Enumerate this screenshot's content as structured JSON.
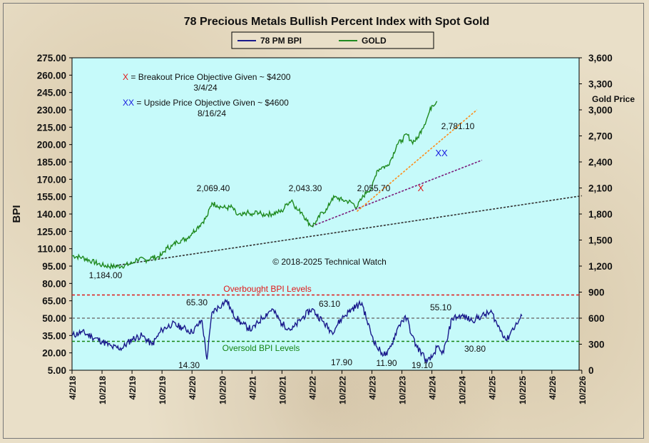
{
  "chart_data": {
    "type": "line",
    "title": "78 Precious Metals Bullish  Percent Index with Spot Gold",
    "legend": {
      "placement": "top-center",
      "items": [
        "78 PM BPI",
        "GOLD"
      ]
    },
    "ylabel_left": "BPI",
    "ylabel_right": "Gold Price",
    "ylim_left": [
      5,
      275
    ],
    "ylim_right": [
      0,
      3600
    ],
    "left_ticks": [
      "275.00",
      "260.00",
      "245.00",
      "230.00",
      "215.00",
      "200.00",
      "185.00",
      "170.00",
      "155.00",
      "140.00",
      "125.00",
      "110.00",
      "95.00",
      "80.00",
      "65.00",
      "50.00",
      "35.00",
      "20.00",
      "5.00"
    ],
    "right_ticks": [
      "3,600",
      "3,300",
      "3,000",
      "2,700",
      "2,400",
      "2,100",
      "1,800",
      "1,500",
      "1,200",
      "900",
      "600",
      "300",
      "0"
    ],
    "x_ticks": [
      "4/2/18",
      "10/2/18",
      "4/2/19",
      "10/2/19",
      "4/2/20",
      "10/2/20",
      "4/2/21",
      "10/2/21",
      "4/2/22",
      "10/2/22",
      "4/2/23",
      "10/2/23",
      "4/2/24",
      "10/2/24",
      "4/2/25",
      "10/2/25",
      "4/2/26",
      "10/2/26"
    ],
    "series": [
      {
        "name": "GOLD",
        "color": "#1f8a1f",
        "axis": "right",
        "points": [
          [
            0,
            1320
          ],
          [
            2,
            1300
          ],
          [
            4,
            1255
          ],
          [
            6,
            1210
          ],
          [
            8,
            1195
          ],
          [
            10,
            1200
          ],
          [
            12,
            1230
          ],
          [
            13,
            1280
          ],
          [
            15,
            1270
          ],
          [
            16,
            1300
          ],
          [
            17,
            1300
          ],
          [
            18,
            1330
          ],
          [
            19,
            1410
          ],
          [
            20,
            1430
          ],
          [
            21,
            1480
          ],
          [
            22,
            1500
          ],
          [
            23,
            1520
          ],
          [
            24,
            1580
          ],
          [
            25,
            1640
          ],
          [
            26,
            1700
          ],
          [
            27,
            1770
          ],
          [
            28,
            1930
          ],
          [
            29,
            1900
          ],
          [
            30,
            1880
          ],
          [
            31,
            1870
          ],
          [
            32,
            1880
          ],
          [
            33,
            1790
          ],
          [
            34,
            1780
          ],
          [
            35,
            1820
          ],
          [
            36,
            1780
          ],
          [
            37,
            1830
          ],
          [
            38,
            1790
          ],
          [
            39,
            1800
          ],
          [
            40,
            1800
          ],
          [
            41,
            1820
          ],
          [
            42,
            1830
          ],
          [
            43,
            1920
          ],
          [
            44,
            1960
          ],
          [
            45,
            1850
          ],
          [
            46,
            1820
          ],
          [
            47,
            1720
          ],
          [
            48,
            1660
          ],
          [
            49,
            1720
          ],
          [
            50,
            1820
          ],
          [
            51,
            1850
          ],
          [
            52,
            1980
          ],
          [
            53,
            1990
          ],
          [
            54,
            1960
          ],
          [
            55,
            1950
          ],
          [
            56,
            1930
          ],
          [
            57,
            1880
          ],
          [
            58,
            1980
          ],
          [
            59,
            2060
          ],
          [
            60,
            2100
          ],
          [
            61,
            2300
          ],
          [
            62,
            2340
          ],
          [
            63,
            2350
          ],
          [
            64,
            2450
          ],
          [
            65,
            2600
          ],
          [
            66,
            2650
          ],
          [
            67,
            2720
          ],
          [
            68,
            2630
          ],
          [
            69,
            2660
          ],
          [
            70,
            2780
          ],
          [
            71,
            2900
          ],
          [
            72,
            3050
          ],
          [
            73,
            3100
          ]
        ]
      },
      {
        "name": "78 PM BPI",
        "color": "#1a1a8c",
        "axis": "left",
        "points": [
          [
            0,
            35
          ],
          [
            2,
            38
          ],
          [
            4,
            34
          ],
          [
            6,
            30
          ],
          [
            8,
            25
          ],
          [
            10,
            24
          ],
          [
            12,
            32
          ],
          [
            14,
            35
          ],
          [
            16,
            27
          ],
          [
            18,
            40
          ],
          [
            20,
            45
          ],
          [
            22,
            42
          ],
          [
            24,
            38
          ],
          [
            26,
            48
          ],
          [
            27,
            14.3
          ],
          [
            28,
            55
          ],
          [
            30,
            62
          ],
          [
            31,
            65.3
          ],
          [
            32,
            55
          ],
          [
            34,
            45
          ],
          [
            36,
            40
          ],
          [
            38,
            50
          ],
          [
            40,
            58
          ],
          [
            42,
            45
          ],
          [
            44,
            40
          ],
          [
            46,
            50
          ],
          [
            48,
            58
          ],
          [
            50,
            48
          ],
          [
            52,
            38
          ],
          [
            54,
            50
          ],
          [
            56,
            58
          ],
          [
            58,
            63.1
          ],
          [
            59,
            48
          ],
          [
            60,
            35
          ],
          [
            61,
            25
          ],
          [
            62,
            20
          ],
          [
            63,
            17.9
          ],
          [
            64,
            28
          ],
          [
            65,
            40
          ],
          [
            66,
            48
          ],
          [
            67,
            50
          ],
          [
            68,
            35
          ],
          [
            69,
            25
          ],
          [
            70,
            20
          ],
          [
            71,
            11.9
          ],
          [
            72,
            16
          ],
          [
            73,
            25
          ],
          [
            74,
            19.1
          ],
          [
            75,
            30
          ],
          [
            76,
            50
          ],
          [
            78,
            52
          ],
          [
            80,
            48
          ],
          [
            82,
            52
          ],
          [
            84,
            55.1
          ],
          [
            85,
            45
          ],
          [
            86,
            38
          ],
          [
            87,
            30.8
          ],
          [
            88,
            40
          ],
          [
            89,
            45
          ],
          [
            90,
            52
          ]
        ]
      }
    ],
    "trendlines": [
      {
        "color": "#333333",
        "from": [
          8,
          1200
        ],
        "to": [
          102,
          2010
        ]
      },
      {
        "color": "#7a1a7a",
        "from": [
          48,
          1660
        ],
        "to": [
          82,
          2420
        ]
      },
      {
        "color": "#ff8c1a",
        "from": [
          57,
          1830
        ],
        "to": [
          81,
          3000
        ]
      }
    ],
    "reference_lines": [
      {
        "value": 70,
        "color": "#e01818",
        "label": "Overbought  BPI Levels"
      },
      {
        "value": 50,
        "color": "#777777",
        "label": ""
      },
      {
        "value": 30,
        "color": "#158515",
        "label": "Oversold  BPI Levels"
      }
    ],
    "annotations": {
      "gold_labels": [
        "1,184.00",
        "2,069.40",
        "2,043.30",
        "2,055.70",
        "2,781.10"
      ],
      "bpi_labels": [
        "14.30",
        "65.30",
        "63.10",
        "17.90",
        "11.90",
        "19.10",
        "55.10",
        "30.80"
      ],
      "notes": [
        {
          "marker": "X",
          "text": " = Breakout Price Objective  Given  ~ $4200",
          "date": "3/4/24",
          "color": "#e01818"
        },
        {
          "marker": "XX",
          "text": " = Upside Price Objective  Given  ~ $4600",
          "date": "8/16/24",
          "color": "#1818e0"
        }
      ],
      "copyright": "© 2018-2025  Technical Watch"
    },
    "grid": false
  }
}
